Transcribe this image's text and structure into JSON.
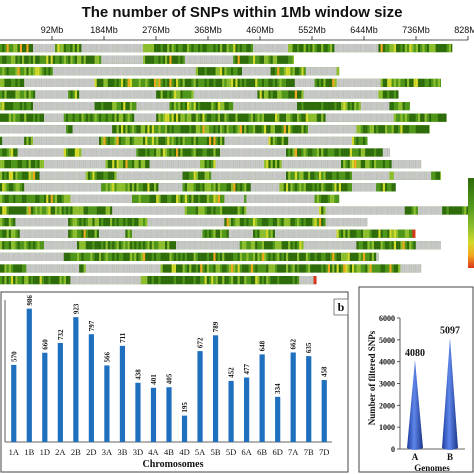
{
  "chart_data": [
    {
      "type": "heatmap",
      "title": "The number of SNPs within 1Mb window size",
      "x_ticks": [
        "92Mb",
        "184Mb",
        "276Mb",
        "368Mb",
        "460Mb",
        "552Mb",
        "644Mb",
        "736Mb",
        "828Mb"
      ],
      "x_unit": "Mb",
      "xlim": [
        0,
        828
      ],
      "rows": 21,
      "row_lengths_mb": [
        800,
        520,
        600,
        780,
        705,
        725,
        790,
        760,
        650,
        690,
        745,
        780,
        700,
        600,
        830,
        650,
        735,
        780,
        670,
        745,
        560
      ],
      "color_scale": [
        "#2e6b0b",
        "#4f961b",
        "#8fbf2e",
        "#d4d92a",
        "#f2a81d",
        "#d9351a"
      ],
      "gap_color": "#c8c8c8"
    },
    {
      "type": "bar",
      "panel_label": "b",
      "xlabel": "Chromosomes",
      "ylabel": "",
      "categories": [
        "1A",
        "1B",
        "1D",
        "2A",
        "2B",
        "2D",
        "3A",
        "3B",
        "3D",
        "4A",
        "4B",
        "4D",
        "5A",
        "5B",
        "5D",
        "6A",
        "6B",
        "6D",
        "7A",
        "7B",
        "7D"
      ],
      "values": [
        570,
        986,
        660,
        732,
        923,
        797,
        566,
        711,
        438,
        401,
        405,
        195,
        672,
        789,
        452,
        477,
        648,
        334,
        662,
        635,
        458
      ],
      "ylim": [
        0,
        1050
      ],
      "bar_color": "#1f6fbf"
    },
    {
      "type": "bar",
      "xlabel": "Genomes",
      "ylabel": "Number of filtered SNPs",
      "categories": [
        "A",
        "B"
      ],
      "values": [
        4080,
        5097
      ],
      "ylim": [
        0,
        6000
      ],
      "y_ticks": [
        0,
        1000,
        2000,
        3000,
        4000,
        5000,
        6000
      ],
      "mark_color": "#3a5fcf"
    }
  ]
}
